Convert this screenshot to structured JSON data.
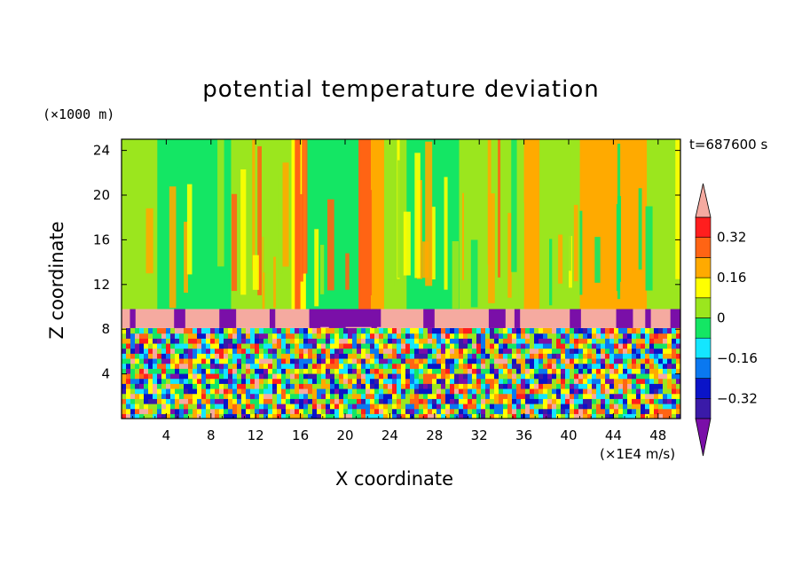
{
  "chart_data": {
    "type": "heatmap",
    "title": "potential temperature deviation",
    "xlabel": "X coordinate",
    "ylabel": "Z coordinate",
    "x_unit": "(×1E4 m/s)",
    "y_unit": "(×1000 m)",
    "time_label": "t=687600 s",
    "xlim": [
      0,
      50
    ],
    "ylim": [
      0,
      25
    ],
    "x_ticks": [
      "4",
      "8",
      "12",
      "16",
      "20",
      "24",
      "28",
      "32",
      "36",
      "40",
      "44",
      "48"
    ],
    "y_ticks": [
      "4",
      "8",
      "12",
      "16",
      "20",
      "24"
    ],
    "colorbar": {
      "levels": [
        -0.4,
        -0.32,
        -0.24,
        -0.16,
        -0.08,
        0,
        0.08,
        0.16,
        0.24,
        0.32,
        0.4
      ],
      "tick_labels": [
        "0.32",
        "0.16",
        "0",
        "−0.16",
        "−0.32"
      ],
      "colors": [
        "#7a0fa8",
        "#3a1aa8",
        "#0a14c8",
        "#0a78f0",
        "#14e6ff",
        "#14e664",
        "#9be61e",
        "#ffff00",
        "#ffaa00",
        "#ff6414",
        "#ff1e1e",
        "#f5aaa0"
      ],
      "extend": "both"
    },
    "regions": [
      {
        "name": "upper layer",
        "z_range": [
          9.8,
          25
        ],
        "dominant_values": "green (0 to 0.08) with cyan (-0.08) and yellow (0.16) vertical bands"
      },
      {
        "name": "inversion band",
        "z_range": [
          8.1,
          9.8
        ],
        "dominant_values": "pink (>0.4) with purple (<-0.4) patches"
      },
      {
        "name": "lower turbulent layer",
        "z_range": [
          0,
          8.1
        ],
        "dominant_values": "mixed -0.4 to 0.4, turbulent structures"
      }
    ],
    "upper_bands": [
      {
        "x": [
          0,
          3.2
        ],
        "level": 0.04
      },
      {
        "x": [
          3.2,
          9.8
        ],
        "level": -0.06
      },
      {
        "x": [
          9.8,
          15.2
        ],
        "level": 0.04
      },
      {
        "x": [
          15.2,
          16.5
        ],
        "level": 0.1
      },
      {
        "x": [
          16.5,
          21.5
        ],
        "level": -0.06
      },
      {
        "x": [
          21.5,
          23.5
        ],
        "level": 0.16
      },
      {
        "x": [
          23.5,
          25.5
        ],
        "level": 0.06
      },
      {
        "x": [
          25.5,
          30.2
        ],
        "level": -0.06
      },
      {
        "x": [
          30.2,
          36.0
        ],
        "level": 0.04
      },
      {
        "x": [
          36.0,
          37.4
        ],
        "level": 0.16
      },
      {
        "x": [
          37.4,
          41.0
        ],
        "level": 0.04
      },
      {
        "x": [
          41.0,
          47.0
        ],
        "level": 0.16
      },
      {
        "x": [
          47.0,
          50.0
        ],
        "level": 0.04
      }
    ]
  }
}
